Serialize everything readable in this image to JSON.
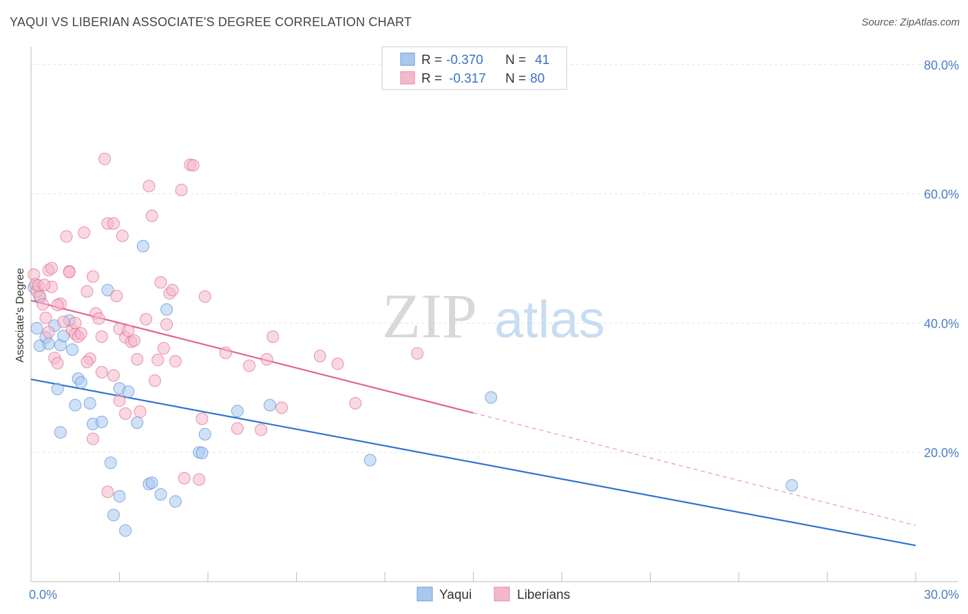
{
  "header": {
    "title": "YAQUI VS LIBERIAN ASSOCIATE'S DEGREE CORRELATION CHART",
    "source": "Source: ZipAtlas.com"
  },
  "watermark": {
    "part1": "ZIP",
    "part2": "atlas"
  },
  "legend_top": {
    "rows": [
      {
        "r_label": "R =",
        "r_value": "-0.370",
        "n_label": "N =",
        "n_value": "41",
        "color": "#a9c8ee"
      },
      {
        "r_label": "R =",
        "r_value": "-0.317",
        "n_label": "N =",
        "n_value": "80",
        "color": "#f4b8cb"
      }
    ]
  },
  "legend_bottom": {
    "items": [
      {
        "label": "Yaqui",
        "color": "#a9c8ee"
      },
      {
        "label": "Liberians",
        "color": "#f4b8cb"
      }
    ]
  },
  "chart_data": {
    "type": "scatter",
    "title": "YAQUI VS LIBERIAN ASSOCIATE'S DEGREE CORRELATION CHART",
    "xlabel": "",
    "ylabel": "Associate's Degree",
    "xlim": [
      0,
      30
    ],
    "ylim": [
      0,
      82
    ],
    "x_tick_labels": [
      {
        "value": 0,
        "label": "0.0%"
      },
      {
        "value": 30,
        "label": "30.0%"
      }
    ],
    "y_tick_labels": [
      {
        "value": 20,
        "label": "20.0%"
      },
      {
        "value": 40,
        "label": "40.0%"
      },
      {
        "value": 60,
        "label": "60.0%"
      },
      {
        "value": 80,
        "label": "80.0%"
      }
    ],
    "grid": true,
    "legend_position": "top-center",
    "series": [
      {
        "name": "Yaqui",
        "color": "#5b93d8",
        "fill": "#a9c8ee",
        "trend": {
          "x0": 0,
          "y0": 31.3,
          "x1": 30,
          "y1": 5.6,
          "dashed_from": null
        },
        "points": [
          [
            0.1,
            45.5
          ],
          [
            0.2,
            39.2
          ],
          [
            0.3,
            36.5
          ],
          [
            0.5,
            37.8
          ],
          [
            0.6,
            36.8
          ],
          [
            0.8,
            39.6
          ],
          [
            1.0,
            36.6
          ],
          [
            1.1,
            38.0
          ],
          [
            1.4,
            35.9
          ],
          [
            1.5,
            27.3
          ],
          [
            1.6,
            31.4
          ],
          [
            1.7,
            30.8
          ],
          [
            2.0,
            27.6
          ],
          [
            2.1,
            24.4
          ],
          [
            2.4,
            24.7
          ],
          [
            2.6,
            45.1
          ],
          [
            2.7,
            18.4
          ],
          [
            2.8,
            10.3
          ],
          [
            3.0,
            13.2
          ],
          [
            3.2,
            7.9
          ],
          [
            3.0,
            29.9
          ],
          [
            3.3,
            29.4
          ],
          [
            3.6,
            24.6
          ],
          [
            3.8,
            51.9
          ],
          [
            4.0,
            15.1
          ],
          [
            4.1,
            15.3
          ],
          [
            4.4,
            13.5
          ],
          [
            4.6,
            42.1
          ],
          [
            4.9,
            12.4
          ],
          [
            5.7,
            20.0
          ],
          [
            5.8,
            19.9
          ],
          [
            5.9,
            22.8
          ],
          [
            7.0,
            26.4
          ],
          [
            8.1,
            27.3
          ],
          [
            11.5,
            18.8
          ],
          [
            15.6,
            28.5
          ],
          [
            25.8,
            14.9
          ],
          [
            0.3,
            44.0
          ],
          [
            1.3,
            40.4
          ],
          [
            1.0,
            23.1
          ],
          [
            0.9,
            29.8
          ]
        ]
      },
      {
        "name": "Liberians",
        "color": "#e07090",
        "fill": "#f4b8cb",
        "trend": {
          "x0": 0,
          "y0": 43.5,
          "x1": 30,
          "y1": 8.7,
          "dashed_from": 15.0
        },
        "points": [
          [
            0.1,
            47.5
          ],
          [
            0.15,
            46.0
          ],
          [
            0.2,
            44.9
          ],
          [
            0.3,
            44.2
          ],
          [
            0.4,
            42.9
          ],
          [
            0.5,
            40.8
          ],
          [
            0.6,
            48.2
          ],
          [
            0.7,
            45.6
          ],
          [
            0.8,
            34.6
          ],
          [
            0.9,
            33.8
          ],
          [
            1.0,
            43.0
          ],
          [
            1.1,
            40.2
          ],
          [
            1.2,
            53.4
          ],
          [
            1.3,
            48.0
          ],
          [
            1.4,
            38.9
          ],
          [
            1.5,
            38.3
          ],
          [
            1.6,
            37.9
          ],
          [
            1.8,
            54.0
          ],
          [
            1.9,
            44.9
          ],
          [
            2.0,
            34.5
          ],
          [
            2.1,
            47.2
          ],
          [
            2.2,
            41.5
          ],
          [
            2.3,
            40.7
          ],
          [
            2.4,
            37.9
          ],
          [
            2.5,
            65.4
          ],
          [
            2.6,
            55.4
          ],
          [
            2.8,
            55.4
          ],
          [
            2.9,
            44.2
          ],
          [
            3.0,
            39.1
          ],
          [
            3.1,
            53.5
          ],
          [
            3.2,
            37.8
          ],
          [
            3.3,
            38.8
          ],
          [
            3.4,
            37.1
          ],
          [
            3.5,
            37.3
          ],
          [
            3.6,
            34.4
          ],
          [
            3.7,
            26.3
          ],
          [
            3.9,
            40.6
          ],
          [
            4.0,
            61.2
          ],
          [
            4.1,
            56.6
          ],
          [
            4.2,
            31.1
          ],
          [
            4.3,
            34.3
          ],
          [
            4.4,
            46.3
          ],
          [
            4.5,
            36.1
          ],
          [
            4.6,
            39.8
          ],
          [
            4.7,
            44.6
          ],
          [
            4.8,
            45.1
          ],
          [
            4.9,
            34.1
          ],
          [
            5.1,
            60.6
          ],
          [
            5.2,
            16.0
          ],
          [
            5.4,
            64.5
          ],
          [
            5.5,
            64.4
          ],
          [
            5.7,
            15.8
          ],
          [
            5.8,
            25.2
          ],
          [
            5.9,
            44.1
          ],
          [
            6.6,
            35.4
          ],
          [
            7.0,
            23.7
          ],
          [
            7.4,
            33.4
          ],
          [
            7.8,
            23.5
          ],
          [
            8.0,
            34.4
          ],
          [
            8.2,
            37.9
          ],
          [
            8.5,
            26.9
          ],
          [
            9.8,
            34.9
          ],
          [
            10.4,
            33.7
          ],
          [
            11.0,
            27.6
          ],
          [
            13.1,
            35.3
          ],
          [
            2.1,
            22.1
          ],
          [
            2.4,
            32.4
          ],
          [
            2.6,
            13.9
          ],
          [
            0.25,
            45.8
          ],
          [
            0.45,
            45.9
          ],
          [
            0.9,
            42.8
          ],
          [
            1.3,
            47.9
          ],
          [
            0.7,
            48.5
          ],
          [
            1.9,
            34.0
          ],
          [
            1.5,
            40.0
          ],
          [
            2.8,
            31.9
          ],
          [
            3.0,
            28.0
          ],
          [
            3.2,
            26.0
          ],
          [
            0.6,
            38.6
          ],
          [
            1.7,
            38.4
          ]
        ]
      }
    ]
  }
}
